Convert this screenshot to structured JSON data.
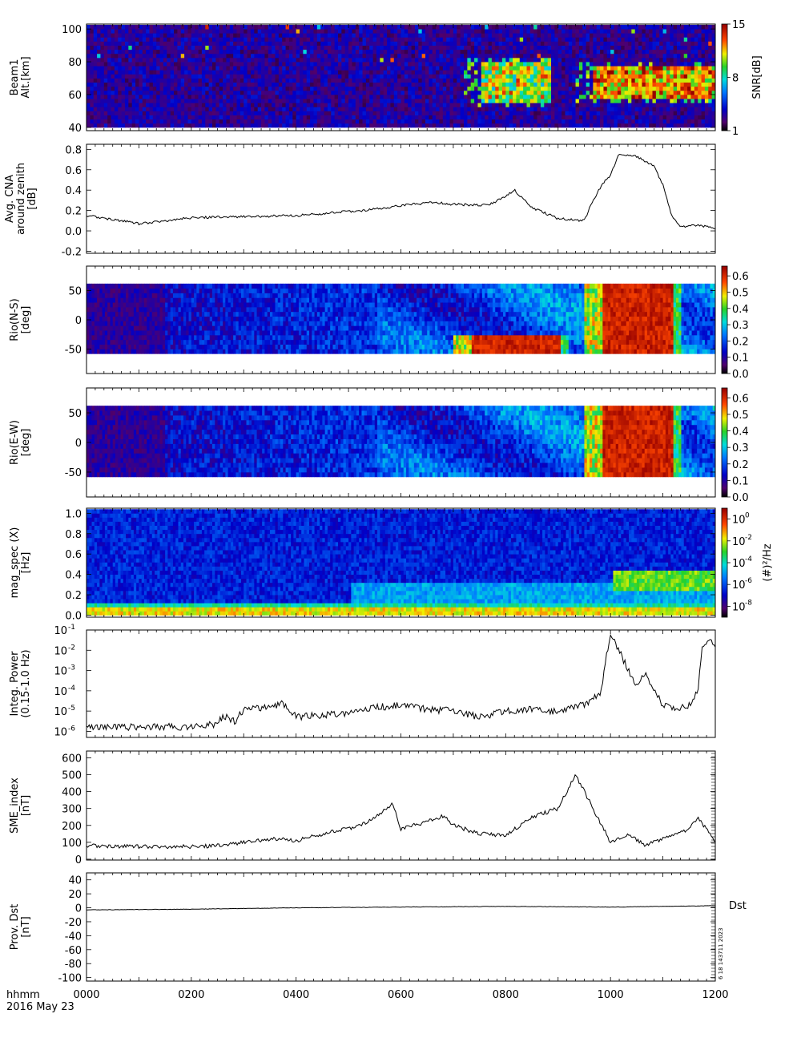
{
  "x_axis": {
    "label_line1": "hhmm",
    "label_line2": "2016 May 23",
    "ticks": [
      "0000",
      "0200",
      "0400",
      "0600",
      "0800",
      "1000",
      "1200"
    ],
    "range_minutes": [
      0,
      720
    ]
  },
  "chart_data": [
    {
      "type": "heatmap",
      "panel_id": "beam1",
      "ylabel_lines": [
        "Beam1",
        "Alt.[km]"
      ],
      "ylim": [
        38,
        103
      ],
      "yticks": [
        "40",
        "60",
        "80",
        "100"
      ],
      "colorbar": {
        "label": "SNR[dB]",
        "ticks": [
          "1",
          "8",
          "15"
        ],
        "range": [
          1,
          15
        ]
      },
      "description_values": {
        "background_snr_db": 3,
        "enhanced_intervals": [
          {
            "start": "0730",
            "end": "0850",
            "alt_km": [
              55,
              78
            ],
            "snr_db": 12
          },
          {
            "start": "0940",
            "end": "1200",
            "alt_km": [
              57,
              75
            ],
            "snr_db": 14
          }
        ]
      }
    },
    {
      "type": "line",
      "panel_id": "cna",
      "ylabel_lines": [
        "Avg. CNA",
        "around zenith",
        "[dB]"
      ],
      "ylim": [
        -0.22,
        0.85
      ],
      "yticks": [
        "-0.2",
        "0.0",
        "0.2",
        "0.4",
        "0.6",
        "0.8"
      ],
      "x": [
        "0000",
        "0040",
        "0100",
        "0200",
        "0300",
        "0400",
        "0430",
        "0500",
        "0540",
        "0600",
        "0640",
        "0700",
        "0740",
        "0800",
        "0810",
        "0830",
        "0900",
        "0930",
        "0940",
        "0950",
        "1000",
        "1010",
        "1030",
        "1050",
        "1100",
        "1110",
        "1120",
        "1140",
        "1200"
      ],
      "y": [
        0.15,
        0.1,
        0.07,
        0.13,
        0.14,
        0.15,
        0.17,
        0.19,
        0.22,
        0.25,
        0.28,
        0.26,
        0.25,
        0.34,
        0.4,
        0.23,
        0.12,
        0.1,
        0.3,
        0.45,
        0.55,
        0.76,
        0.73,
        0.63,
        0.45,
        0.15,
        0.04,
        0.06,
        0.02
      ]
    },
    {
      "type": "heatmap",
      "panel_id": "riometer-ns",
      "ylabel_lines": [
        "Rio(N-S)",
        "[deg]"
      ],
      "ylim": [
        -92,
        92
      ],
      "yticks": [
        "-50",
        "0",
        "50"
      ],
      "colorbar": {
        "ticks": [
          "0.0",
          "0.1",
          "0.2",
          "0.3",
          "0.4",
          "0.5",
          "0.6"
        ],
        "range": [
          0,
          0.66
        ]
      },
      "data_extent_deg": [
        -58,
        58
      ],
      "description_values": {
        "strong_absorption": [
          {
            "start": "0720",
            "end": "0900",
            "lat_deg": [
              -58,
              -30
            ],
            "value": 0.65
          },
          {
            "start": "0950",
            "end": "1110",
            "lat_deg": [
              -58,
              58
            ],
            "value": 0.65
          }
        ]
      }
    },
    {
      "type": "heatmap",
      "panel_id": "riometer-ew",
      "ylabel_lines": [
        "Rio(E-W)",
        "[deg]"
      ],
      "ylim": [
        -92,
        92
      ],
      "yticks": [
        "-50",
        "0",
        "50"
      ],
      "colorbar": {
        "ticks": [
          "0.0",
          "0.1",
          "0.2",
          "0.3",
          "0.4",
          "0.5",
          "0.6"
        ],
        "range": [
          0,
          0.66
        ]
      },
      "data_extent_deg": [
        -58,
        58
      ],
      "description_values": {
        "strong_absorption": [
          {
            "start": "0950",
            "end": "1110",
            "lat_deg": [
              -58,
              58
            ],
            "value": 0.65
          }
        ]
      }
    },
    {
      "type": "heatmap",
      "panel_id": "mag-spec",
      "ylabel_lines": [
        "mag_spec (X)",
        "[Hz]"
      ],
      "ylim": [
        -0.02,
        1.05
      ],
      "yticks": [
        "0.0",
        "0.2",
        "0.4",
        "0.6",
        "0.8",
        "1.0"
      ],
      "colorbar": {
        "label": "(#)²/Hz",
        "exponents": [
          "-8",
          "-6",
          "-4",
          "-2",
          "0"
        ],
        "log_range": [
          -9,
          1
        ]
      }
    },
    {
      "type": "line",
      "panel_id": "integ-power",
      "ylabel_lines": [
        "Integ. Power",
        "(0.15-1.0 Hz)"
      ],
      "log_scale": true,
      "ylim_log": [
        -6.3,
        -1
      ],
      "tick_exponents": [
        "-6",
        "-5",
        "-4",
        "-3",
        "-2",
        "-1"
      ],
      "x": [
        "0000",
        "0100",
        "0200",
        "0225",
        "0240",
        "0250",
        "0300",
        "0330",
        "0345",
        "0400",
        "0500",
        "0530",
        "0600",
        "0630",
        "0700",
        "0730",
        "0800",
        "0820",
        "0900",
        "0930",
        "0950",
        "0955",
        "1000",
        "1010",
        "1020",
        "1030",
        "1040",
        "1050",
        "1100",
        "1115",
        "1130",
        "1140",
        "1145",
        "1150",
        "1200"
      ],
      "y": [
        1.6e-06,
        1.6e-06,
        1.7e-06,
        2.2e-06,
        6e-06,
        3e-06,
        1.2e-05,
        1.5e-05,
        2.5e-05,
        5e-06,
        8e-06,
        1.5e-05,
        2e-05,
        1.2e-05,
        1e-05,
        5e-06,
        1e-05,
        1.2e-05,
        1e-05,
        2e-05,
        0.0001,
        0.005,
        0.05,
        0.01,
        0.001,
        0.0002,
        0.0006,
        0.0001,
        2e-05,
        1e-05,
        2e-05,
        0.0001,
        0.01,
        0.03,
        0.02
      ]
    },
    {
      "type": "line",
      "panel_id": "sme",
      "ylabel_lines": [
        "SME_index",
        "[nT]"
      ],
      "ylim": [
        -5,
        640
      ],
      "yticks": [
        "0",
        "100",
        "200",
        "300",
        "400",
        "500",
        "600"
      ],
      "x": [
        "0000",
        "0100",
        "0200",
        "0230",
        "0300",
        "0330",
        "0400",
        "0430",
        "0500",
        "0530",
        "0550",
        "0600",
        "0630",
        "0650",
        "0700",
        "0730",
        "0800",
        "0830",
        "0900",
        "0920",
        "0940",
        "1000",
        "1020",
        "1040",
        "1100",
        "1130",
        "1140",
        "1200"
      ],
      "y": [
        80,
        75,
        75,
        80,
        100,
        120,
        110,
        150,
        180,
        240,
        330,
        180,
        220,
        260,
        200,
        150,
        140,
        250,
        300,
        500,
        300,
        100,
        150,
        80,
        120,
        180,
        250,
        100
      ]
    },
    {
      "type": "line",
      "panel_id": "dst",
      "ylabel_lines": [
        "Prov. Dst",
        "[nT]"
      ],
      "ylim": [
        -105,
        50
      ],
      "yticks": [
        "-100",
        "-80",
        "-60",
        "-40",
        "-20",
        "0",
        "20",
        "40"
      ],
      "series_label": "Dst",
      "x": [
        "0000",
        "0200",
        "0400",
        "0600",
        "0800",
        "1000",
        "1200"
      ],
      "y": [
        -3,
        -2,
        0,
        1,
        2,
        1,
        3
      ]
    }
  ],
  "side_stamp": "6 18 143711 2023"
}
